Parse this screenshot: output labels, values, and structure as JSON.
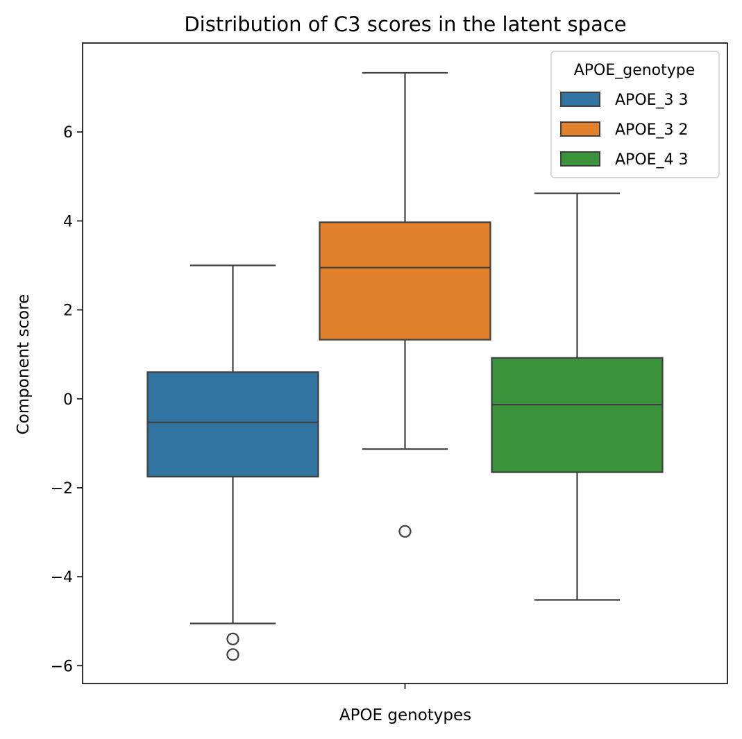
{
  "chart_data": {
    "type": "box",
    "title": "Distribution of C3 scores in the latent space",
    "xlabel": "APOE genotypes",
    "ylabel": "Component score",
    "ylim": [
      -6.4,
      8.0
    ],
    "yticks": [
      -6,
      -4,
      -2,
      0,
      2,
      4,
      6
    ],
    "ytick_labels": [
      "−6",
      "−4",
      "−2",
      "0",
      "2",
      "4",
      "6"
    ],
    "legend": {
      "title": "APOE_genotype",
      "position": "top-right"
    },
    "series": [
      {
        "name": "APOE_3 3",
        "color": "#3274a1",
        "whisker_low": -5.05,
        "q1": -1.75,
        "median": -0.53,
        "q3": 0.6,
        "whisker_high": 3.0,
        "outliers": [
          -5.4,
          -5.75
        ]
      },
      {
        "name": "APOE_3 2",
        "color": "#e1812c",
        "whisker_low": -1.13,
        "q1": 1.33,
        "median": 2.95,
        "q3": 3.97,
        "whisker_high": 7.33,
        "outliers": [
          -2.98
        ]
      },
      {
        "name": "APOE_4 3",
        "color": "#3a923a",
        "whisker_low": -4.52,
        "q1": -1.65,
        "median": -0.13,
        "q3": 0.92,
        "whisker_high": 4.62,
        "outliers": []
      }
    ]
  }
}
